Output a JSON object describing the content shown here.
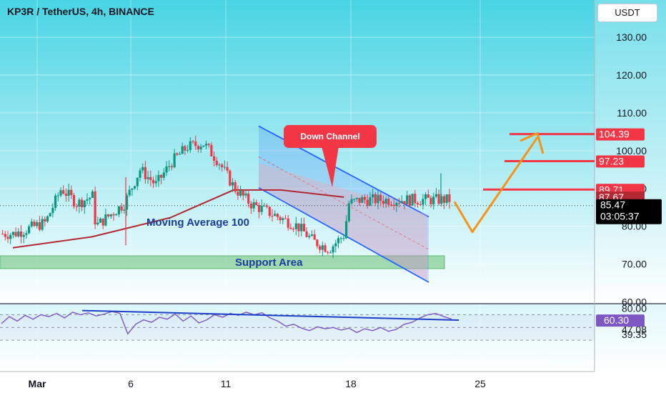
{
  "header": {
    "title": "KP3R / TetherUS, 4h, BINANCE",
    "currency": "USDT"
  },
  "colors": {
    "background_top": "#48d4e4",
    "background_bottom": "#ffffff",
    "candle_up": "#089981",
    "candle_down": "#f23645",
    "moving_average": "#b22833",
    "channel": "#2962ff",
    "projection": "#f7931a",
    "resistance": "#f23645",
    "support": "#8fd19e",
    "rsi_line": "#7e57c2",
    "rsi_trend": "#1e40c8"
  },
  "chart_data": [
    {
      "type": "candlestick",
      "title": "KP3R / TetherUS, 4h, BINANCE",
      "price_axis": {
        "range": [
          60,
          135
        ],
        "ticks": [
          "130.00",
          "120.00",
          "110.00",
          "100.00",
          "90.00",
          "80.00",
          "70.00",
          "60.00"
        ]
      },
      "time_axis": {
        "ticks": [
          "Mar",
          "6",
          "11",
          "18",
          "25"
        ]
      },
      "series": [
        {
          "name": "Moving Average 100",
          "color": "#b22833",
          "points": [
            [
              "Mar 1",
              74.3
            ],
            [
              "Mar 6",
              77.2
            ],
            [
              "Mar 11",
              82.3
            ],
            [
              "Mar 15",
              89.6
            ],
            [
              "Mar 18",
              89.6
            ],
            [
              "Mar 22",
              87.7
            ]
          ]
        }
      ],
      "price_segments": [
        [
          "Mar 1",
          78
        ],
        [
          "Mar 3",
          81
        ],
        [
          "Mar 4",
          90
        ],
        [
          "Mar 5",
          86
        ],
        [
          "Mar 6",
          88
        ],
        [
          "Mar 6",
          80
        ],
        [
          "Mar 8",
          86
        ],
        [
          "Mar 9",
          95
        ],
        [
          "Mar 10",
          91
        ],
        [
          "Mar 11",
          97
        ],
        [
          "Mar 12",
          101
        ],
        [
          "Mar 13",
          102
        ],
        [
          "Mar 14",
          97
        ],
        [
          "Mar 15",
          90
        ],
        [
          "Mar 16",
          86
        ],
        [
          "Mar 17",
          84
        ],
        [
          "Mar 18",
          82
        ],
        [
          "Mar 19",
          80
        ],
        [
          "Mar 20",
          76
        ],
        [
          "Mar 21",
          74
        ],
        [
          "Mar 22",
          78
        ],
        [
          "Mar 22",
          86
        ],
        [
          "Mar 23",
          87
        ]
      ],
      "annotations": [
        "Down Channel",
        "Moving Average  100",
        "Support Area"
      ],
      "support_area": [
        69,
        72
      ],
      "down_channel": {
        "upper": [
          [
            "Mar 12",
            106.5
          ],
          [
            "Mar 22",
            82.5
          ]
        ],
        "lower": [
          [
            "Mar 12",
            90.2
          ],
          [
            "Mar 22",
            65.2
          ]
        ]
      },
      "projection": [
        [
          "Mar 22",
          86.5
        ],
        [
          "Mar 23",
          78.5
        ],
        [
          "Mar 25",
          103.5
        ]
      ],
      "horizontal_levels": [
        {
          "label": "104.39",
          "value": 104.39,
          "color": "#f23645"
        },
        {
          "label": "97.23",
          "value": 97.23,
          "color": "#f23645"
        },
        {
          "label": "89.71",
          "value": 89.71,
          "color": "#f23645"
        },
        {
          "label": "87.67",
          "value": 87.67,
          "color": "#b22833"
        },
        {
          "label": "85.47",
          "value": 85.47,
          "color": "#000000"
        }
      ],
      "countdown": "03:05:37"
    },
    {
      "type": "line",
      "title": "",
      "y_axis": {
        "range": [
          34,
          84
        ],
        "ticks": [
          "80.00",
          "47.08",
          "39.35"
        ]
      },
      "series": [
        {
          "name": "",
          "color": "#7e57c2",
          "values": [
            56,
            67,
            60,
            69,
            63,
            70,
            67,
            72,
            65,
            74,
            70,
            73,
            68,
            71,
            75,
            72,
            40,
            55,
            62,
            58,
            66,
            63,
            71,
            60,
            68,
            57,
            62,
            70,
            66,
            72,
            69,
            74,
            70,
            73,
            65,
            60,
            52,
            55,
            49,
            45,
            51,
            48,
            50,
            46,
            49,
            42,
            48,
            45,
            50,
            44,
            47,
            55,
            58,
            65,
            70,
            72,
            67,
            63
          ]
        }
      ],
      "reference_levels": [
        70,
        50,
        30
      ],
      "current_label": "60.30",
      "trend_line": [
        [
          "Mar 3",
          76.5
        ],
        [
          "Mar 23",
          61.5
        ]
      ]
    }
  ]
}
